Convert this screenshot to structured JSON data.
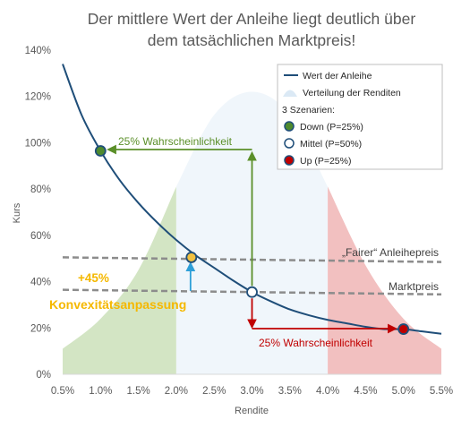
{
  "chart_data": {
    "type": "line",
    "title": "Der mittlere Wert der Anleihe liegt deutlich über dem tatsächlichen Marktpreis!",
    "title_lines": [
      "Der mittlere Wert der Anleihe liegt deutlich über",
      "dem tatsächlichen Marktpreis!"
    ],
    "xlabel": "Rendite",
    "ylabel": "Kurs",
    "xlim": [
      0.5,
      5.5
    ],
    "ylim": [
      0,
      140
    ],
    "x_ticks": [
      0.5,
      1.0,
      1.5,
      2.0,
      2.5,
      3.0,
      3.5,
      4.0,
      4.5,
      5.0,
      5.5
    ],
    "x_tick_labels": [
      "0.5%",
      "1.0%",
      "1.5%",
      "2.0%",
      "2.5%",
      "3.0%",
      "3.5%",
      "4.0%",
      "4.5%",
      "5.0%",
      "5.5%"
    ],
    "y_ticks": [
      0,
      20,
      40,
      60,
      80,
      100,
      120,
      140
    ],
    "y_tick_labels": [
      "0%",
      "20%",
      "40%",
      "60%",
      "80%",
      "100%",
      "120%",
      "140%"
    ],
    "grid": false,
    "legend_position": "top-right",
    "series": [
      {
        "name": "Wert der Anleihe",
        "kind": "line",
        "color": "#1f4e79",
        "x": [
          0.5,
          0.75,
          1.0,
          1.25,
          1.5,
          1.75,
          2.0,
          2.25,
          2.5,
          2.75,
          3.0,
          3.25,
          3.5,
          3.75,
          4.0,
          4.25,
          4.5,
          4.75,
          5.0,
          5.25,
          5.5
        ],
        "y": [
          134,
          112,
          96.5,
          84,
          74,
          65.5,
          58,
          51.5,
          46,
          40.5,
          35.5,
          31.5,
          28,
          25.5,
          23.5,
          22,
          20.5,
          19.5,
          19.5,
          18.5,
          17.5
        ]
      },
      {
        "name": "Verteilung der Renditen",
        "kind": "area",
        "x": [
          0.5,
          1.0,
          1.5,
          2.0,
          2.5,
          3.0,
          3.5,
          4.0,
          4.5,
          5.0,
          5.5
        ],
        "y": [
          11,
          24,
          45,
          81,
          112,
          122,
          112,
          81,
          47,
          24,
          11
        ],
        "regions": [
          {
            "from": 0.5,
            "to": 2.0,
            "color": "#d3e5c4"
          },
          {
            "from": 2.0,
            "to": 4.0,
            "color": "#f0f6fb"
          },
          {
            "from": 4.0,
            "to": 5.5,
            "color": "#f2c0c0"
          }
        ]
      }
    ],
    "scenarios_heading": "3 Szenarien:",
    "scenarios": [
      {
        "name": "Down (P=25%)",
        "x": 1.0,
        "y": 96.5,
        "fill": "#4e8a2e",
        "stroke": "#1f4e79"
      },
      {
        "name": "Mittel (P=50%)",
        "x": 3.0,
        "y": 35.5,
        "fill": "#ffffff",
        "stroke": "#1f4e79"
      },
      {
        "name": "Up (P=25%)",
        "x": 5.0,
        "y": 19.5,
        "fill": "#c00000",
        "stroke": "#1f4e79"
      }
    ],
    "mean_point": {
      "x": 2.2,
      "y": 50.5,
      "fill": "#f0c040",
      "stroke": "#1f4e79"
    },
    "reference_lines": [
      {
        "name": "„Fairer“ Anleihepreis",
        "y_start": 50.5,
        "y_end": 48.5,
        "color": "#8c8c8c"
      },
      {
        "name": "Marktpreis",
        "y_start": 36.5,
        "y_end": 34.5,
        "color": "#8c8c8c"
      }
    ],
    "annotations": {
      "down_arrow_label": "25% Wahrscheinlichkeit",
      "up_arrow_label": "25% Wahrscheinlichkeit",
      "premium_label": "+45%",
      "convexity_label": "Konvexitätsanpassung"
    },
    "colors": {
      "green": "#5b8f29",
      "red": "#c00000",
      "blue_arrow": "#2e9fd8",
      "orange_text": "#f5b800"
    }
  }
}
